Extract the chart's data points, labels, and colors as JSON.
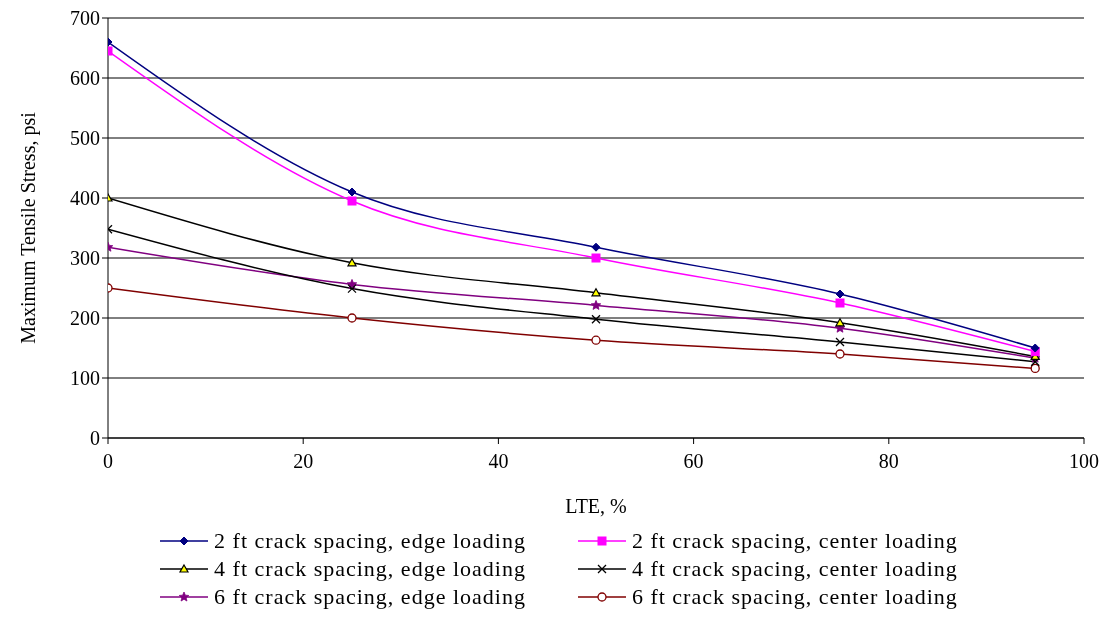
{
  "chart_data": {
    "type": "line",
    "xlabel": "LTE, %",
    "ylabel": "Maximum Tensile Stress, psi",
    "x": [
      0,
      25,
      50,
      75,
      95
    ],
    "xlim": [
      0,
      100
    ],
    "xticks": [
      0,
      20,
      40,
      60,
      80,
      100
    ],
    "ylim": [
      0,
      700
    ],
    "yticks": [
      0,
      100,
      200,
      300,
      400,
      500,
      600,
      700
    ],
    "grid": "y",
    "legend": "bottom",
    "line_style": "solid",
    "series": [
      {
        "name": "2 ft crack spacing, edge loading",
        "color": "#000080",
        "marker": "diamond",
        "values": [
          660,
          410,
          318,
          240,
          150
        ]
      },
      {
        "name": "2 ft crack spacing, center loading",
        "color": "#ff00ff",
        "marker": "square",
        "values": [
          645,
          395,
          300,
          225,
          144
        ]
      },
      {
        "name": "4 ft crack spacing, edge loading",
        "color": "#000000",
        "marker": "triangle",
        "values": [
          400,
          292,
          242,
          192,
          136
        ]
      },
      {
        "name": "4 ft crack spacing, center loading",
        "color": "#000000",
        "marker": "cross",
        "values": [
          348,
          249,
          198,
          160,
          127
        ]
      },
      {
        "name": "6 ft crack spacing, edge loading",
        "color": "#800080",
        "marker": "star",
        "values": [
          318,
          256,
          221,
          183,
          133
        ]
      },
      {
        "name": "6 ft crack spacing, center loading",
        "color": "#800000",
        "marker": "circle",
        "values": [
          250,
          200,
          163,
          140,
          116
        ]
      }
    ]
  }
}
